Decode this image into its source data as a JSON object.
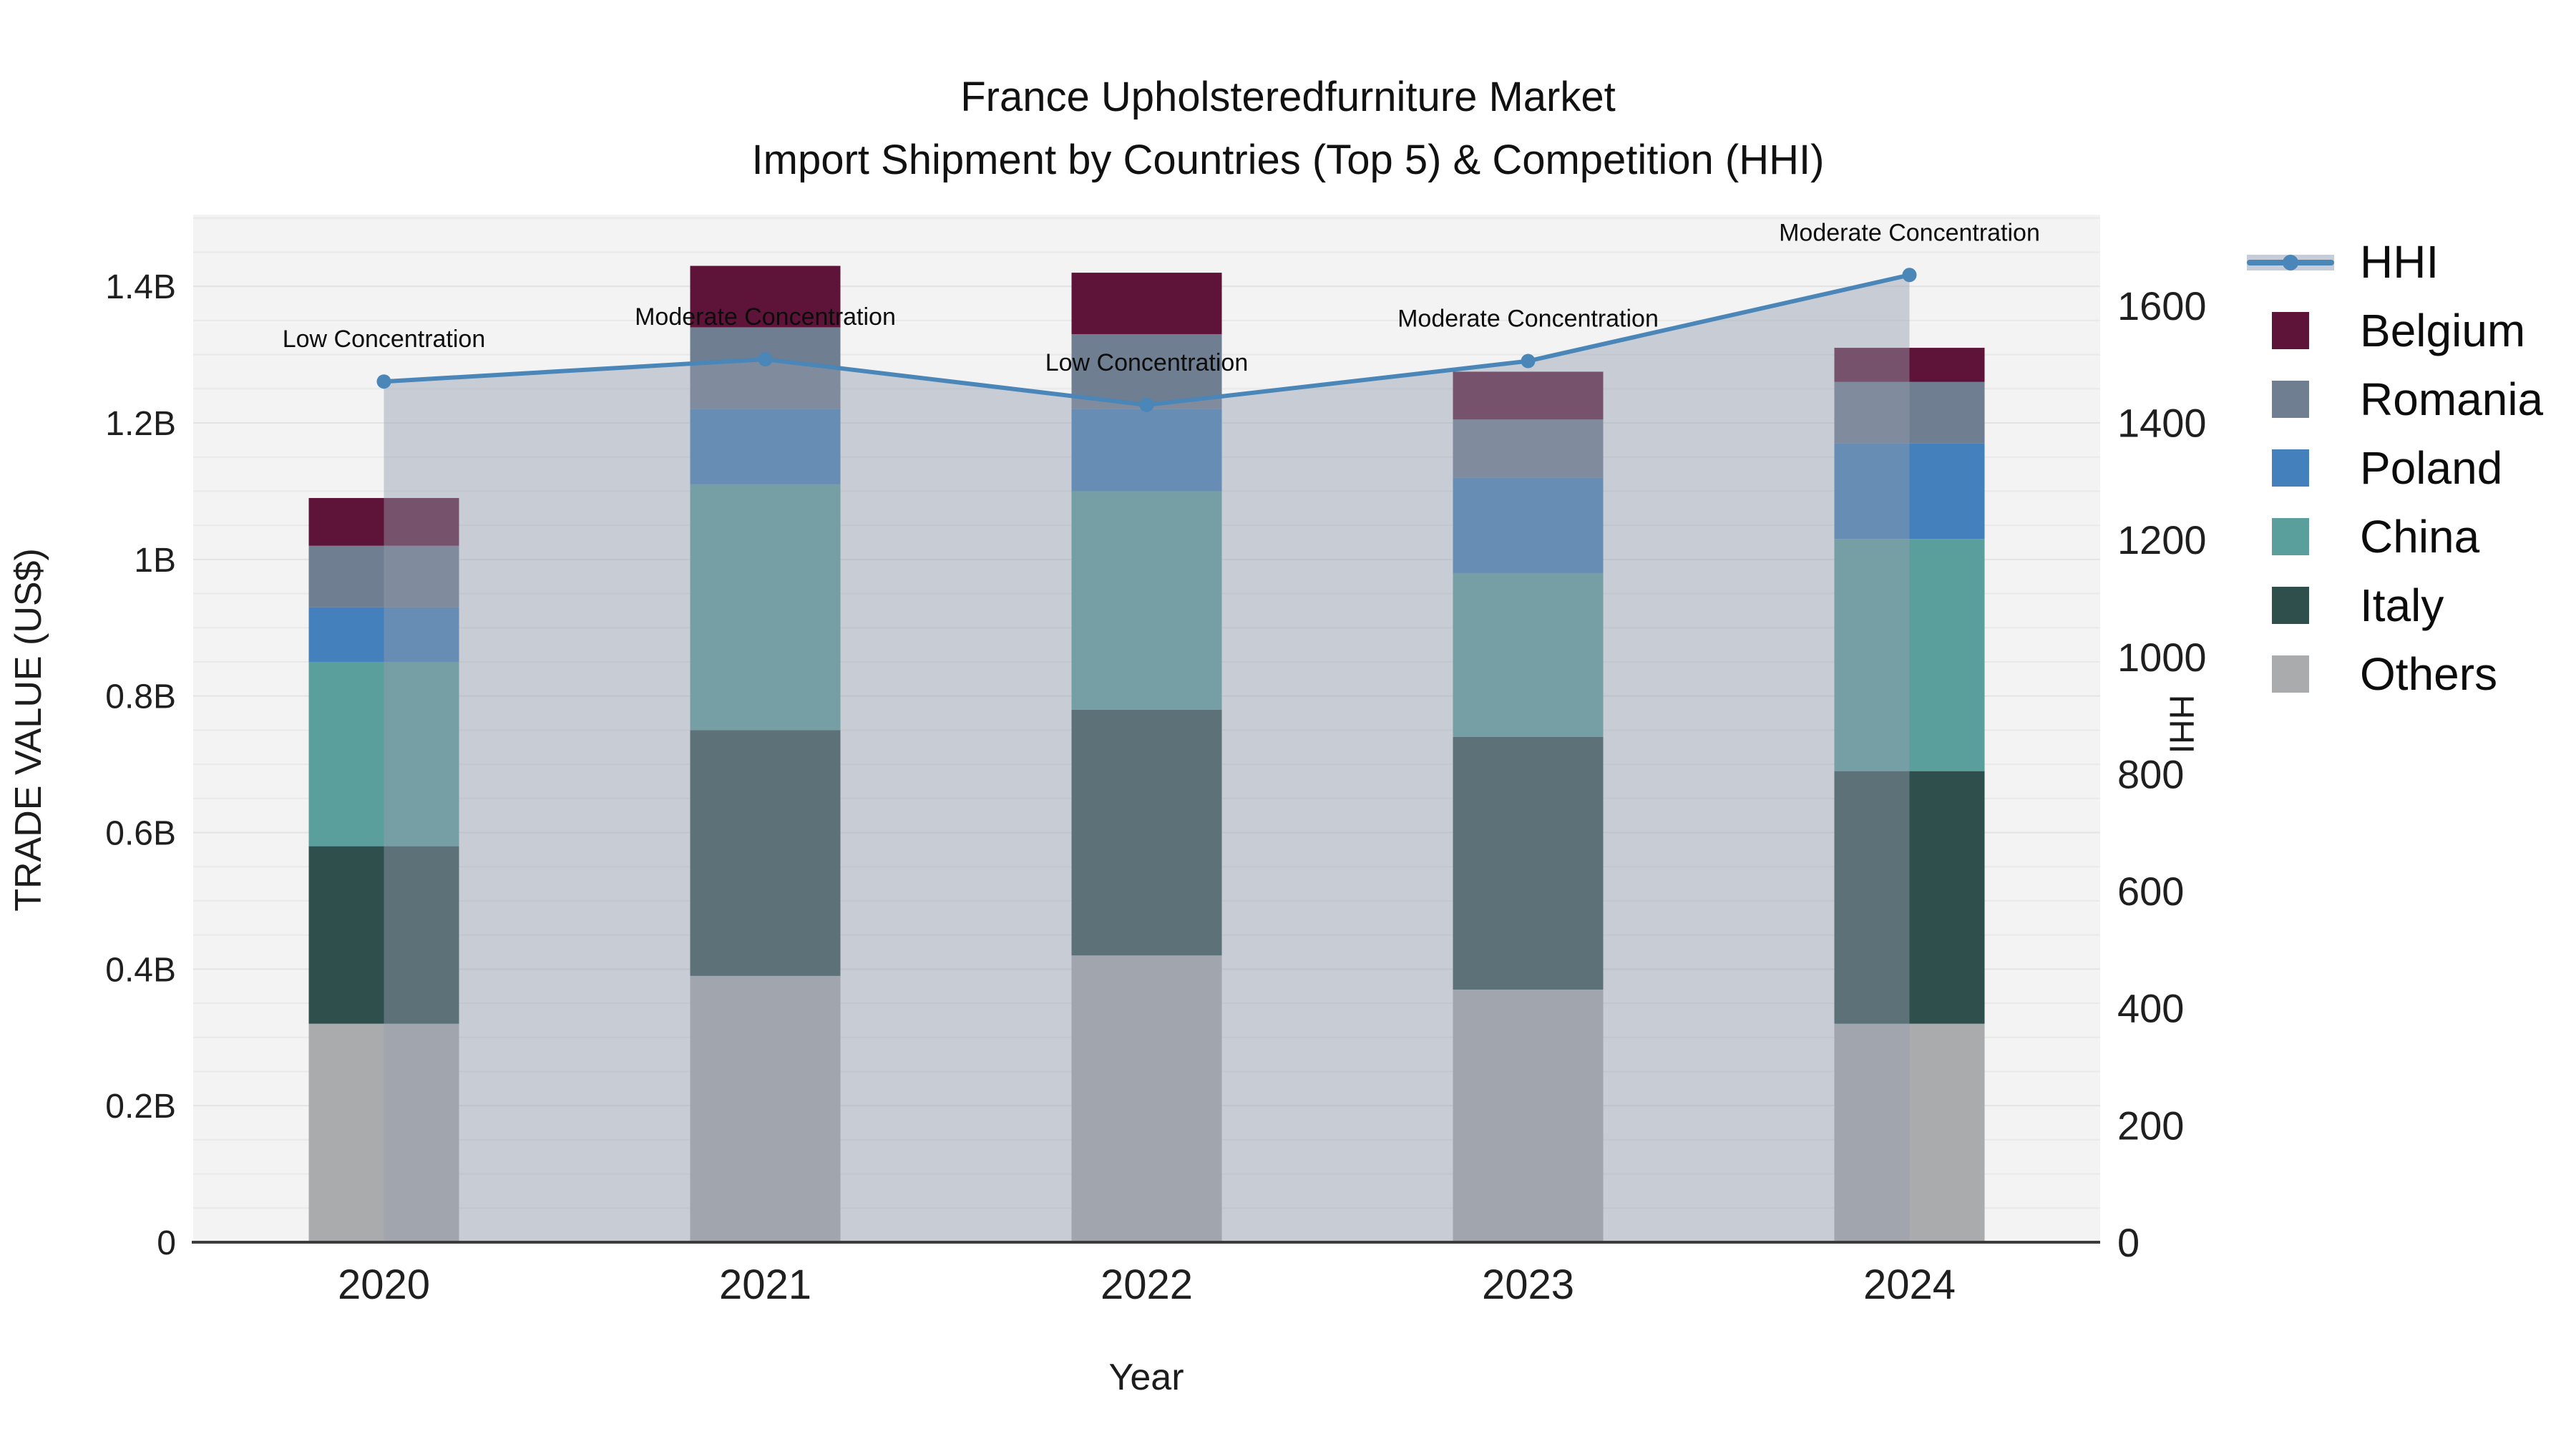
{
  "title": {
    "line1": "France Upholsteredfurniture Market",
    "line2": "Import Shipment by Countries (Top 5) & Competition (HHI)"
  },
  "chart_data": {
    "type": "bar+line",
    "title": "France Upholsteredfurniture Market\nImport Shipment by Countries (Top 5) & Competition (HHI)",
    "categories": [
      "2020",
      "2021",
      "2022",
      "2023",
      "2024"
    ],
    "bar_unit": "billion US$",
    "stack_note": "series listed bottom-to-top of stack; values in billions US$",
    "series": [
      {
        "name": "Others",
        "color": "#a9abad",
        "values": [
          0.32,
          0.39,
          0.42,
          0.37,
          0.32
        ]
      },
      {
        "name": "Italy",
        "color": "#2e4f4c",
        "values": [
          0.26,
          0.36,
          0.36,
          0.37,
          0.37
        ]
      },
      {
        "name": "China",
        "color": "#5b9f9d",
        "values": [
          0.27,
          0.36,
          0.32,
          0.24,
          0.34
        ]
      },
      {
        "name": "Poland",
        "color": "#4480bb",
        "values": [
          0.08,
          0.11,
          0.12,
          0.14,
          0.14
        ]
      },
      {
        "name": "Romania",
        "color": "#6f7e91",
        "values": [
          0.09,
          0.12,
          0.11,
          0.085,
          0.09
        ]
      },
      {
        "name": "Belgium",
        "color": "#5e1438",
        "values": [
          0.07,
          0.09,
          0.09,
          0.07,
          0.05
        ]
      }
    ],
    "line": {
      "name": "HHI",
      "color": "#4a86b8",
      "area_color": "rgba(148,158,176,0.45)",
      "values": [
        1470,
        1508,
        1430,
        1505,
        1652
      ]
    },
    "annotations": [
      "Low Concentration",
      "Moderate Concentration",
      "Low Concentration",
      "Moderate Concentration",
      "Moderate Concentration"
    ],
    "left_axis": {
      "title": "TRADE VALUE (US$)",
      "tick_labels": [
        "0",
        "0.2B",
        "0.4B",
        "0.6B",
        "0.8B",
        "1B",
        "1.2B",
        "1.4B"
      ],
      "tick_values": [
        0,
        0.2,
        0.4,
        0.6,
        0.8,
        1.0,
        1.2,
        1.4
      ],
      "max": 1.505,
      "grid": true
    },
    "right_axis": {
      "title": "HHI",
      "tick_values": [
        0,
        200,
        400,
        600,
        800,
        1000,
        1200,
        1400,
        1600
      ],
      "max": 1755
    },
    "x_axis": {
      "title": "Year"
    },
    "legend": [
      "HHI",
      "Belgium",
      "Romania",
      "Poland",
      "China",
      "Italy",
      "Others"
    ],
    "legend_position": "right"
  },
  "style": {
    "plot_bg": "#f2f3f2",
    "grid_color": "#e8e9e8",
    "grid_major_color": "#e2e3e2",
    "axis_line_color": "#3c3c3c"
  }
}
